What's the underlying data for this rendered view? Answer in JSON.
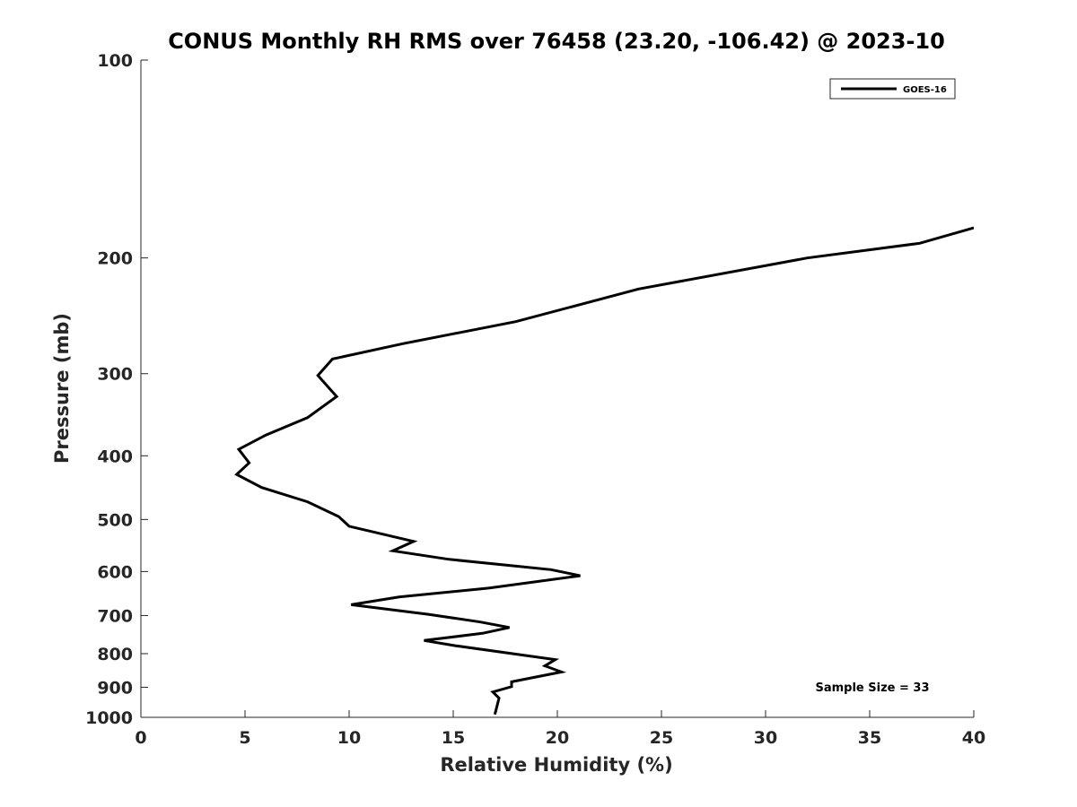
{
  "chart_data": {
    "type": "line",
    "title": "CONUS Monthly RH RMS over 76458 (23.20, -106.42) @ 2023-10",
    "xlabel": "Relative Humidity (%)",
    "ylabel": "Pressure (mb)",
    "xlim": [
      0,
      40
    ],
    "ylim": [
      100,
      1000
    ],
    "yscale": "log",
    "yreversed": true,
    "grid": false,
    "legend_position": "top-right",
    "x_ticks": [
      0,
      5,
      10,
      15,
      20,
      25,
      30,
      35,
      40
    ],
    "x_tick_labels": [
      "0",
      "5",
      "10",
      "15",
      "20",
      "25",
      "30",
      "35",
      "40"
    ],
    "y_ticks": [
      100,
      200,
      300,
      400,
      500,
      600,
      700,
      800,
      900,
      1000
    ],
    "y_tick_labels": [
      "100",
      "200",
      "300",
      "400",
      "500",
      "600",
      "700",
      "800",
      "900",
      "1000"
    ],
    "series": [
      {
        "name": "GOES-16",
        "color": "#000000",
        "x": [
          40.0,
          37.4,
          32.0,
          23.9,
          18.0,
          12.6,
          9.2,
          8.5,
          9.4,
          8.0,
          6.0,
          4.7,
          5.2,
          4.6,
          5.8,
          8.0,
          9.5,
          10.0,
          13.1,
          12.1,
          14.8,
          19.7,
          21.1,
          16.7,
          12.4,
          10.1,
          13.8,
          16.3,
          17.7,
          16.4,
          13.6,
          15.1,
          19.9,
          19.4,
          20.2,
          17.8,
          17.8,
          16.9,
          17.2,
          17.0
        ],
        "y": [
          180,
          190,
          200,
          223,
          250,
          270,
          285,
          302,
          325,
          350,
          372,
          391,
          410,
          427,
          447,
          470,
          495,
          512,
          540,
          558,
          575,
          596,
          609,
          636,
          656,
          674,
          697,
          716,
          730,
          745,
          764,
          778,
          817,
          835,
          853,
          883,
          898,
          915,
          935,
          990
        ]
      }
    ],
    "annotation": "Sample Size = 33"
  }
}
